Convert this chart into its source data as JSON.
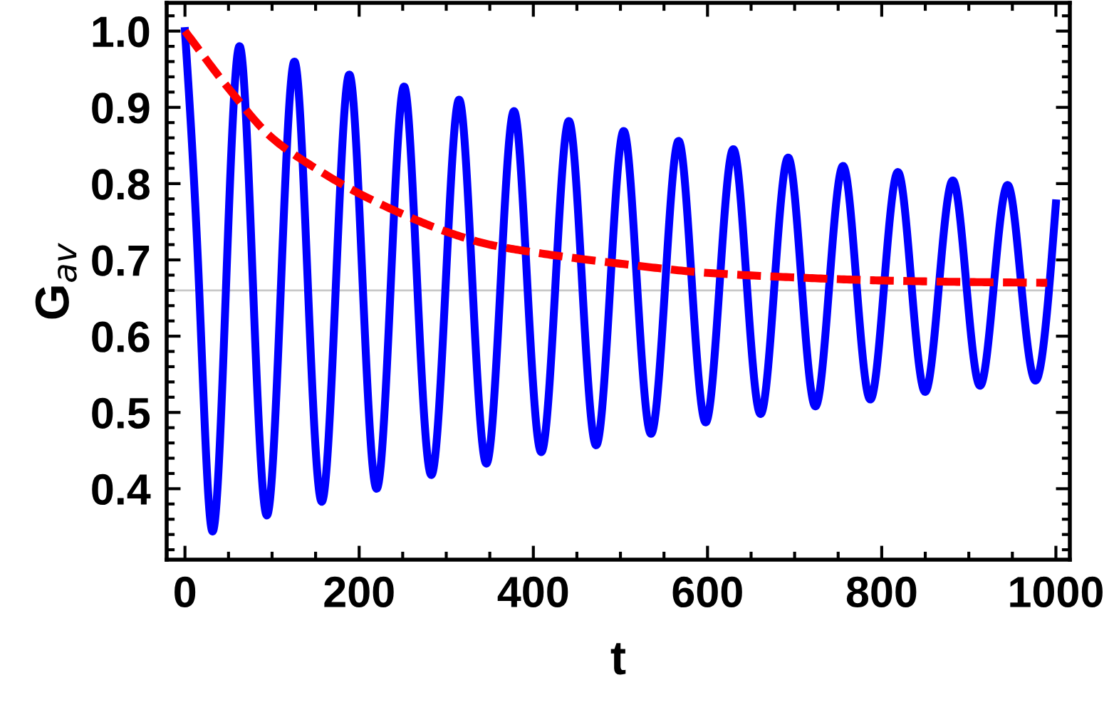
{
  "chart_data": {
    "type": "line",
    "xlabel": "t",
    "ylabel": "G$_{av}$",
    "xlim": [
      -21,
      1016
    ],
    "ylim": [
      0.307,
      1.037
    ],
    "xticks": [
      0,
      200,
      400,
      600,
      800,
      1000
    ],
    "yticks": [
      {
        "value": 0.4,
        "label": "0.4"
      },
      {
        "value": 0.5,
        "label": "0.5"
      },
      {
        "value": 0.6,
        "label": "0.6"
      },
      {
        "value": 0.7,
        "label": "0.7"
      },
      {
        "value": 0.8,
        "label": "0.8"
      },
      {
        "value": 0.9,
        "label": "0.9"
      },
      {
        "value": 1.0,
        "label": "1.0"
      }
    ],
    "grid": false,
    "ref_lines": [
      {
        "axis": "y",
        "value": 0.66,
        "color": "#c8c8c8"
      }
    ],
    "series": [
      {
        "color": "#0000ff",
        "line_style": "solid",
        "x": [
          0,
          16,
          31,
          47,
          63,
          78,
          94,
          110,
          126,
          141,
          157,
          173,
          189,
          204,
          220,
          236,
          252,
          267,
          283,
          299,
          315,
          330,
          346,
          362,
          378,
          393,
          409,
          425,
          441,
          456,
          472,
          488,
          504,
          519,
          535,
          551,
          567,
          582,
          598,
          614,
          630,
          645,
          661,
          677,
          693,
          708,
          724,
          740,
          756,
          771,
          787,
          803,
          819,
          834,
          850,
          866,
          882,
          897,
          913,
          929,
          945,
          960,
          976,
          1000
        ],
        "values": [
          1.0,
          0.67,
          0.345,
          0.66,
          0.98,
          0.67,
          0.365,
          0.66,
          0.96,
          0.67,
          0.383,
          0.66,
          0.943,
          0.67,
          0.4,
          0.66,
          0.927,
          0.66,
          0.418,
          0.66,
          0.91,
          0.67,
          0.433,
          0.66,
          0.895,
          0.67,
          0.448,
          0.66,
          0.882,
          0.67,
          0.457,
          0.66,
          0.869,
          0.67,
          0.472,
          0.66,
          0.856,
          0.67,
          0.487,
          0.67,
          0.845,
          0.67,
          0.498,
          0.67,
          0.834,
          0.67,
          0.508,
          0.67,
          0.823,
          0.67,
          0.517,
          0.67,
          0.815,
          0.67,
          0.527,
          0.67,
          0.804,
          0.67,
          0.535,
          0.67,
          0.798,
          0.67,
          0.542,
          0.774
        ]
      },
      {
        "color": "#ff0000",
        "line_style": "dashed",
        "x": [
          0,
          50,
          100,
          150,
          200,
          250,
          300,
          350,
          400,
          500,
          600,
          700,
          800,
          900,
          990
        ],
        "values": [
          1.0,
          0.925,
          0.86,
          0.82,
          0.787,
          0.76,
          0.737,
          0.72,
          0.71,
          0.695,
          0.683,
          0.677,
          0.673,
          0.671,
          0.67
        ]
      }
    ]
  }
}
